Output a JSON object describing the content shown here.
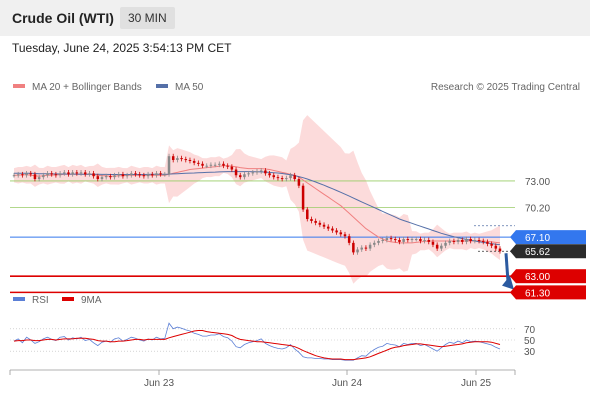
{
  "header": {
    "title": "Crude Oil (WTI)",
    "timeframe": "30 MIN",
    "datetime": "Tuesday, June 24, 2025 3:54:13 PM CET"
  },
  "legend": {
    "ma20_label": "MA 20 + Bollinger Bands",
    "ma50_label": "MA 50",
    "credit": "Research © 2025 Trading Central",
    "rsi_label": "RSI",
    "rsi_ma_label": "9MA"
  },
  "colors": {
    "candle_up": "#888888",
    "candle_down": "#cc0000",
    "ma20": "#f08080",
    "ma50": "#5570a8",
    "bollinger_fill": "#fbd5d5",
    "support": "#dd0000",
    "pivot": "#3377ee",
    "resistance": "#99cc66",
    "rsi": "#5b7fd6",
    "rsi_ma": "#dd0000",
    "arrow": "#2b5aa0"
  },
  "chart_data": [
    {
      "type": "candlestick",
      "title": "Crude Oil (WTI)",
      "timeframe": "30 MIN",
      "x_ticks": [
        "Jun 23",
        "Jun 24",
        "Jun 25"
      ],
      "y_range": [
        60.5,
        81.5
      ],
      "levels": [
        {
          "label": "73.00",
          "value": 73.0,
          "kind": "resistance"
        },
        {
          "label": "70.20",
          "value": 70.2,
          "kind": "resistance"
        },
        {
          "label": "67.10",
          "value": 67.1,
          "kind": "pivot"
        },
        {
          "label": "65.62",
          "value": 65.62,
          "kind": "last"
        },
        {
          "label": "63.00",
          "value": 63.0,
          "kind": "support"
        },
        {
          "label": "61.30",
          "value": 61.3,
          "kind": "support"
        }
      ],
      "closes": [
        73.6,
        73.7,
        73.6,
        73.8,
        73.7,
        73.2,
        73.4,
        73.6,
        73.8,
        73.7,
        73.6,
        73.8,
        73.9,
        73.7,
        73.9,
        73.8,
        73.9,
        73.7,
        73.8,
        73.5,
        73.2,
        73.4,
        73.5,
        73.4,
        73.6,
        73.7,
        73.5,
        73.6,
        73.8,
        73.7,
        73.6,
        73.5,
        73.7,
        73.6,
        73.8,
        73.7,
        73.7,
        75.6,
        75.2,
        75.4,
        75.3,
        75.2,
        75.1,
        74.9,
        74.8,
        74.6,
        74.6,
        74.7,
        74.7,
        74.8,
        74.6,
        74.5,
        74.2,
        73.6,
        73.4,
        73.7,
        73.8,
        73.9,
        74.0,
        74.1,
        73.8,
        73.6,
        73.4,
        73.3,
        73.2,
        73.3,
        73.6,
        73.2,
        72.5,
        70.0,
        69.0,
        68.8,
        68.6,
        68.4,
        68.2,
        68.0,
        67.8,
        67.6,
        67.4,
        67.2,
        66.5,
        65.5,
        65.8,
        66.0,
        65.9,
        66.3,
        66.5,
        66.7,
        66.8,
        67.0,
        66.9,
        66.8,
        66.6,
        66.9,
        66.8,
        66.9,
        66.9,
        66.7,
        66.8,
        66.6,
        66.3,
        65.9,
        66.2,
        66.5,
        66.7,
        66.6,
        66.8,
        66.6,
        66.9,
        66.7,
        66.8,
        66.7,
        66.6,
        66.4,
        66.2,
        65.9,
        65.62
      ],
      "ma20": [
        73.6,
        73.6,
        73.65,
        73.65,
        73.6,
        73.55,
        73.5,
        73.55,
        73.6,
        73.6,
        73.65,
        73.65,
        73.7,
        73.7,
        73.7,
        73.7,
        73.7,
        73.7,
        73.7,
        73.65,
        73.6,
        73.55,
        73.55,
        73.5,
        73.5,
        73.55,
        73.55,
        73.6,
        73.6,
        73.6,
        73.6,
        73.6,
        73.6,
        73.6,
        73.6,
        73.6,
        73.6,
        73.7,
        73.8,
        73.9,
        74.0,
        74.1,
        74.2,
        74.25,
        74.3,
        74.35,
        74.4,
        74.45,
        74.5,
        74.55,
        74.6,
        74.6,
        74.55,
        74.5,
        74.4,
        74.35,
        74.3,
        74.3,
        74.3,
        74.3,
        74.25,
        74.2,
        74.1,
        74.0,
        73.9,
        73.8,
        73.7,
        73.6,
        73.4,
        73.1,
        72.8,
        72.5,
        72.2,
        71.9,
        71.6,
        71.3,
        71.0,
        70.7,
        70.4,
        70.0,
        69.6,
        69.2,
        68.8,
        68.4,
        68.0,
        67.7,
        67.4,
        67.1,
        66.9,
        66.7,
        66.6,
        66.55,
        66.5,
        66.5,
        66.5,
        66.5,
        66.55,
        66.6,
        66.65,
        66.7,
        66.7,
        66.7,
        66.7,
        66.7,
        66.7,
        66.7,
        66.7,
        66.7,
        66.7,
        66.7,
        66.7,
        66.7,
        66.7,
        66.65,
        66.6,
        66.55,
        66.5
      ],
      "ma50": [
        73.8,
        73.8,
        73.8,
        73.8,
        73.8,
        73.78,
        73.76,
        73.75,
        73.75,
        73.74,
        73.74,
        73.73,
        73.73,
        73.72,
        73.72,
        73.72,
        73.71,
        73.7,
        73.7,
        73.7,
        73.7,
        73.69,
        73.69,
        73.68,
        73.68,
        73.68,
        73.68,
        73.68,
        73.68,
        73.68,
        73.68,
        73.68,
        73.69,
        73.7,
        73.7,
        73.7,
        73.71,
        73.72,
        73.74,
        73.76,
        73.78,
        73.8,
        73.82,
        73.84,
        73.86,
        73.88,
        73.9,
        73.92,
        73.93,
        73.95,
        73.97,
        73.98,
        73.98,
        73.98,
        73.98,
        73.98,
        73.98,
        73.97,
        73.96,
        73.95,
        73.93,
        73.9,
        73.87,
        73.83,
        73.78,
        73.72,
        73.65,
        73.56,
        73.46,
        73.34,
        73.2,
        73.05,
        72.89,
        72.72,
        72.55,
        72.37,
        72.19,
        72.0,
        71.81,
        71.61,
        71.41,
        71.2,
        71.0,
        70.8,
        70.6,
        70.4,
        70.2,
        70.0,
        69.8,
        69.6,
        69.4,
        69.2,
        69.0,
        68.85,
        68.7,
        68.55,
        68.4,
        68.25,
        68.1,
        67.95,
        67.8,
        67.65,
        67.5,
        67.38,
        67.26,
        67.15,
        67.05,
        66.95,
        66.86,
        66.78,
        66.7,
        66.62,
        66.55,
        66.48,
        66.42,
        66.36,
        66.3
      ],
      "xlabel": "",
      "ylabel": ""
    },
    {
      "type": "line",
      "title": "",
      "series": [
        {
          "name": "RSI",
          "values": [
            48,
            52,
            45,
            55,
            50,
            44,
            47,
            52,
            55,
            51,
            49,
            55,
            56,
            50,
            54,
            52,
            55,
            49,
            51,
            45,
            40,
            46,
            48,
            46,
            52,
            54,
            48,
            51,
            55,
            53,
            50,
            48,
            52,
            50,
            55,
            52,
            53,
            80,
            70,
            73,
            71,
            68,
            66,
            62,
            60,
            57,
            57,
            59,
            59,
            61,
            56,
            54,
            48,
            38,
            36,
            42,
            45,
            47,
            49,
            52,
            44,
            40,
            37,
            35,
            34,
            36,
            42,
            34,
            28,
            20,
            18,
            18,
            17,
            17,
            16,
            16,
            15,
            15,
            15,
            14,
            14,
            14,
            18,
            22,
            21,
            28,
            33,
            37,
            39,
            44,
            42,
            41,
            38,
            44,
            42,
            44,
            44,
            40,
            42,
            38,
            34,
            30,
            36,
            42,
            46,
            44,
            48,
            45,
            50,
            47,
            48,
            47,
            45,
            43,
            41,
            37,
            34
          ]
        },
        {
          "name": "9MA",
          "values": [
            48,
            49,
            49,
            50,
            50,
            49,
            49,
            50,
            51,
            51,
            50,
            51,
            52,
            52,
            52,
            53,
            53,
            53,
            52,
            51,
            49,
            48,
            48,
            47,
            47,
            48,
            48,
            49,
            50,
            51,
            51,
            50,
            51,
            51,
            51,
            51,
            51,
            54,
            56,
            58,
            60,
            62,
            64,
            66,
            67,
            67,
            65,
            64,
            63,
            62,
            61,
            60,
            58,
            54,
            51,
            50,
            49,
            48,
            47,
            47,
            46,
            45,
            44,
            43,
            42,
            41,
            40,
            38,
            35,
            31,
            28,
            25,
            22,
            20,
            18,
            17,
            16,
            16,
            16,
            15,
            15,
            15,
            16,
            17,
            18,
            20,
            23,
            26,
            29,
            32,
            35,
            37,
            38,
            40,
            41,
            42,
            43,
            43,
            42,
            41,
            40,
            39,
            38,
            39,
            40,
            41,
            42,
            43,
            45,
            46,
            47,
            47,
            47,
            47,
            46,
            44,
            42
          ]
        }
      ],
      "y_ticks": [
        70,
        50,
        30
      ],
      "ylim": [
        0,
        100
      ]
    }
  ]
}
